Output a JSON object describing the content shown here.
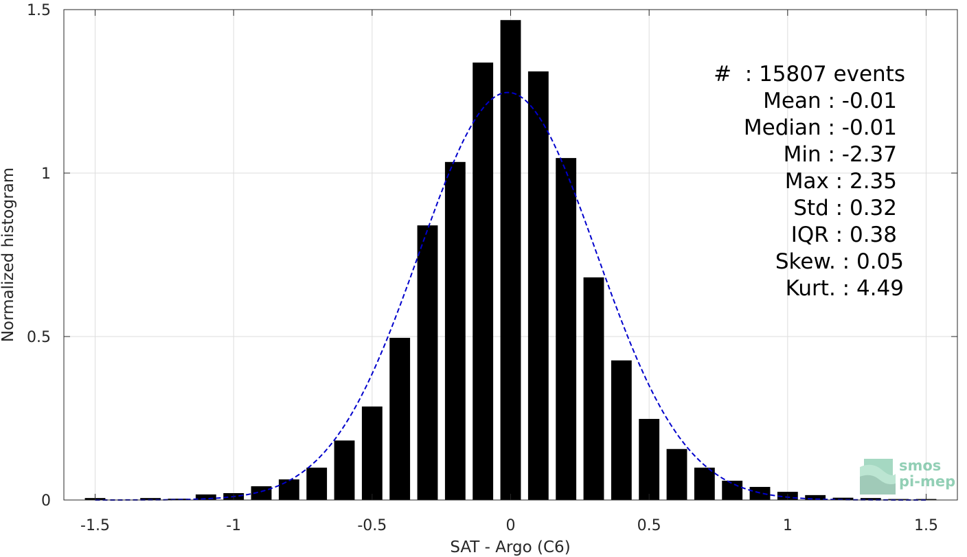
{
  "chart_data": {
    "type": "bar",
    "xlabel": "SAT - Argo (C6)",
    "ylabel": "Normalized histogram",
    "xlim": [
      -1.5,
      1.5
    ],
    "ylim": [
      0,
      1.5
    ],
    "xticks": [
      -1.5,
      -1,
      -0.5,
      0,
      0.5,
      1,
      1.5
    ],
    "xtick_labels": [
      "-1.5",
      "-1",
      "-0.5",
      "0",
      "0.5",
      "1",
      "1.5"
    ],
    "yticks": [
      0,
      0.5,
      1,
      1.5
    ],
    "ytick_labels": [
      "0",
      "0.5",
      "1",
      "1.5"
    ],
    "grid": true,
    "bin_width": 0.1,
    "bar_color": "#000000",
    "fit_color": "#0000cc",
    "x": [
      -1.5,
      -1.3,
      -1.2,
      -1.1,
      -1.0,
      -0.9,
      -0.8,
      -0.7,
      -0.6,
      -0.5,
      -0.4,
      -0.3,
      -0.2,
      -0.1,
      0.0,
      0.1,
      0.2,
      0.3,
      0.4,
      0.5,
      0.6,
      0.7,
      0.8,
      0.9,
      1.0,
      1.1,
      1.2,
      1.3,
      1.4,
      1.5
    ],
    "values": [
      0.006,
      0.006,
      0.004,
      0.017,
      0.021,
      0.042,
      0.063,
      0.099,
      0.182,
      0.286,
      0.496,
      0.84,
      1.034,
      1.338,
      1.468,
      1.311,
      1.046,
      0.681,
      0.427,
      0.248,
      0.156,
      0.099,
      0.059,
      0.04,
      0.025,
      0.015,
      0.007,
      0.006,
      0.003,
      0.003
    ],
    "fit": {
      "type": "normal",
      "style": "dashed",
      "mean": -0.01,
      "std": 0.32
    },
    "stats": [
      {
        "label": "#  ",
        "value": ": 15807 events"
      },
      {
        "label": "Mean ",
        "value": ": -0.01"
      },
      {
        "label": "Median ",
        "value": ": -0.01"
      },
      {
        "label": "Min ",
        "value": ": -2.37"
      },
      {
        "label": "Max ",
        "value": ": 2.35"
      },
      {
        "label": "Std ",
        "value": ": 0.32"
      },
      {
        "label": "IQR ",
        "value": ": 0.38"
      },
      {
        "label": "Skew. ",
        "value": ": 0.05"
      },
      {
        "label": "Kurt. ",
        "value": ": 4.49"
      }
    ]
  },
  "logo": {
    "line1": "smos",
    "line2": "pi-mep",
    "color": "#3aa97a"
  }
}
